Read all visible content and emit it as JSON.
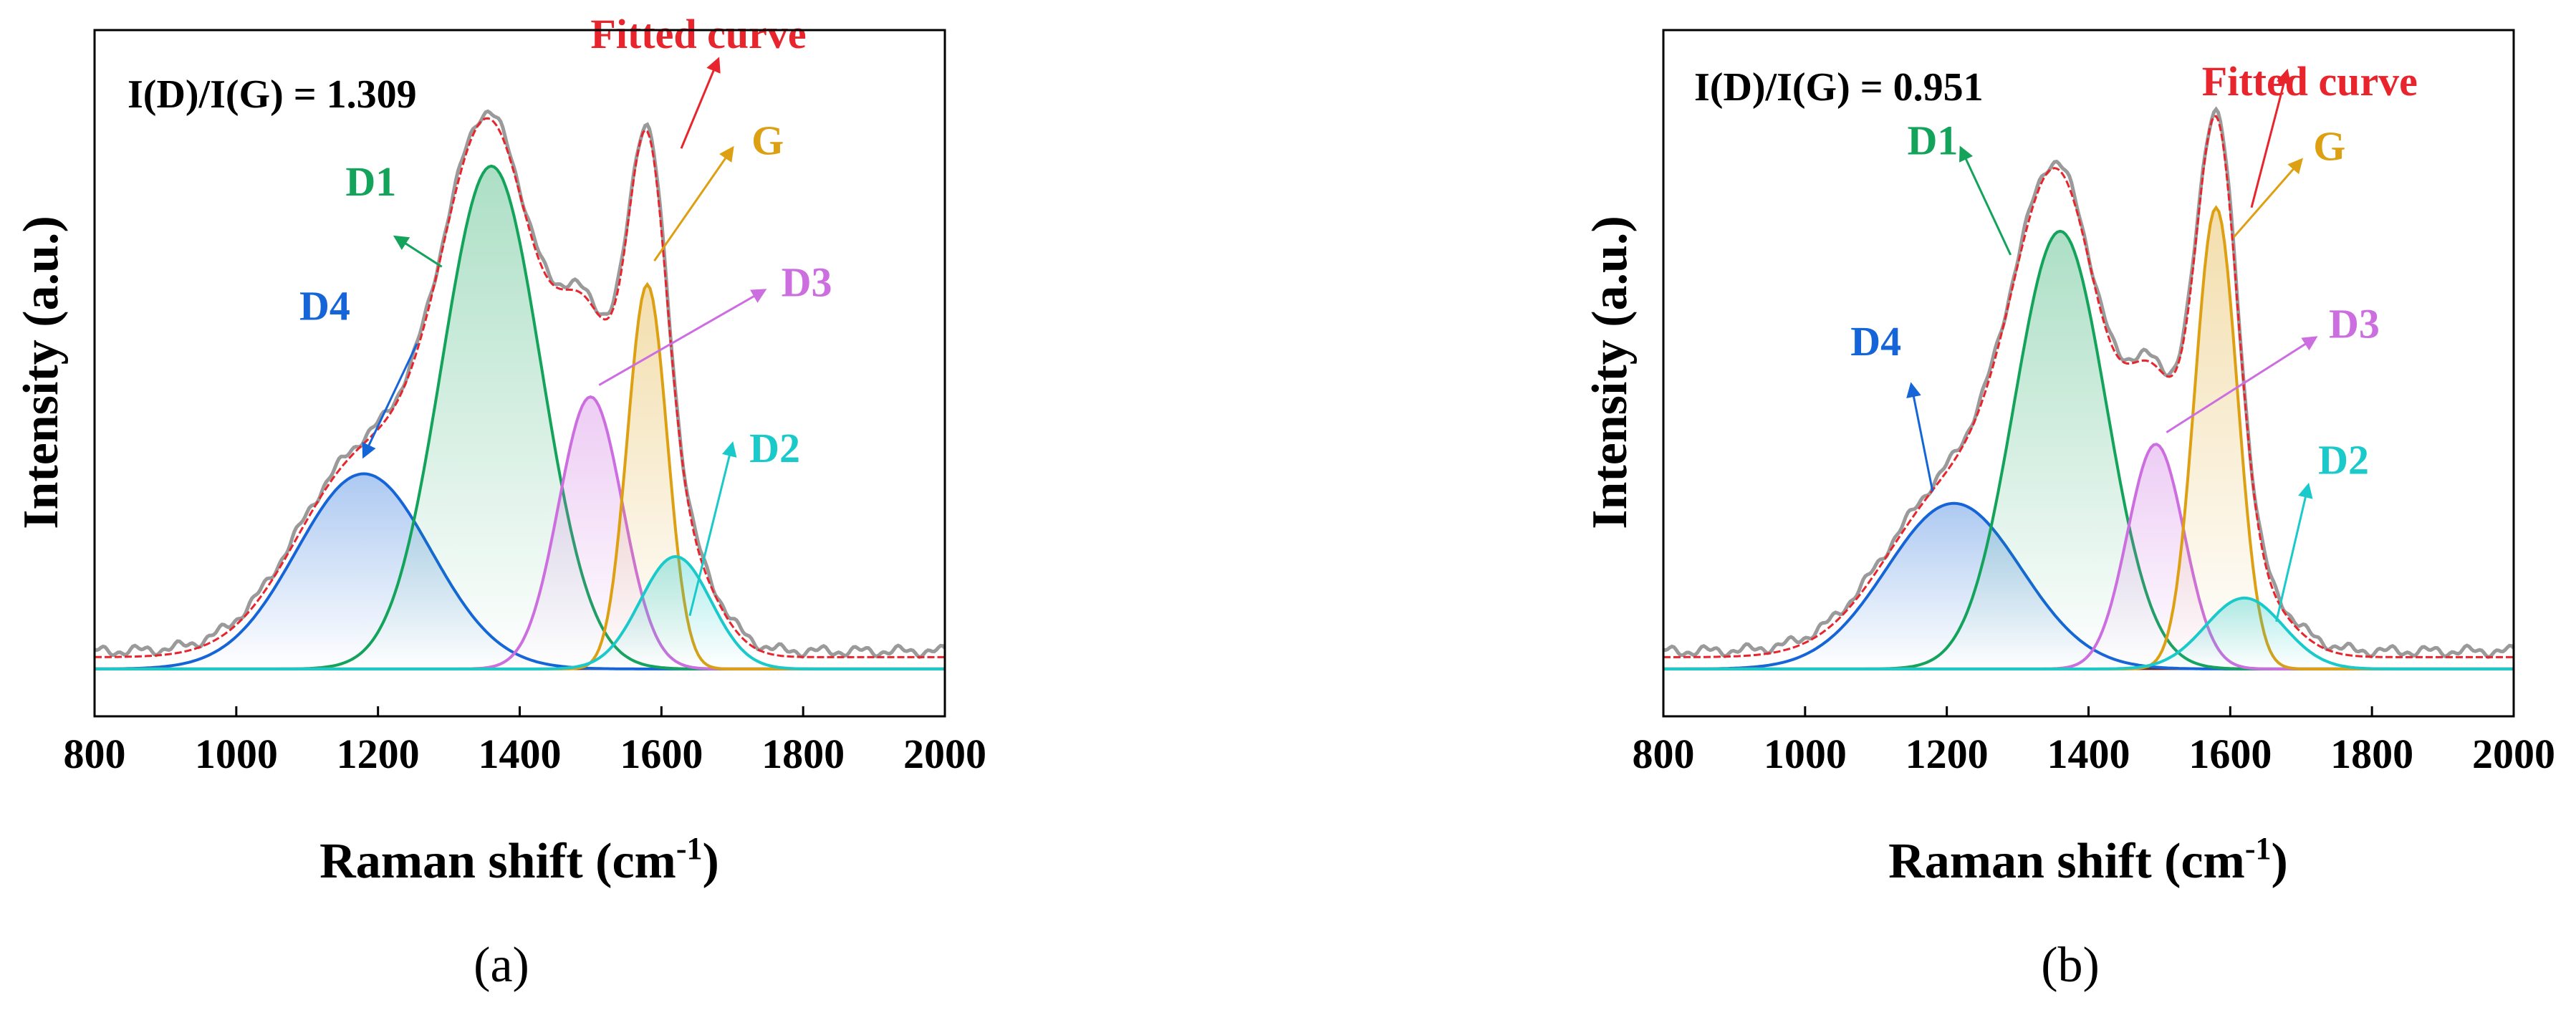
{
  "chart_data": [
    {
      "type": "line",
      "panel_label": "(a)",
      "ratio_text": "I(D)/I(G) = 1.309",
      "xlabel": "Raman shift (cm",
      "xlabel_sup": "-1",
      "xlabel_end": ")",
      "ylabel": "Intensity (a.u.)",
      "xlim": [
        800,
        2000
      ],
      "ylim": [
        -0.08,
        1.08
      ],
      "xticks": [
        "800",
        "1000",
        "1200",
        "1400",
        "1600",
        "1800",
        "2000"
      ],
      "yticks_shown": false,
      "fitted_label": "Fitted curve",
      "baseline": 0.02,
      "peaks": [
        {
          "name": "D4",
          "center": 1180,
          "sigma": 95,
          "height": 0.33,
          "color": "#1565d8"
        },
        {
          "name": "D1",
          "center": 1360,
          "sigma": 70,
          "height": 0.85,
          "color": "#13a35b"
        },
        {
          "name": "D3",
          "center": 1500,
          "sigma": 45,
          "height": 0.46,
          "color": "#cc6ee0"
        },
        {
          "name": "G",
          "center": 1580,
          "sigma": 28,
          "height": 0.65,
          "color": "#dca012"
        },
        {
          "name": "D2",
          "center": 1620,
          "sigma": 50,
          "height": 0.19,
          "color": "#1ac9c9"
        }
      ]
    },
    {
      "type": "line",
      "panel_label": "(b)",
      "ratio_text": "I(D)/I(G) = 0.951",
      "xlabel": "Raman shift (cm",
      "xlabel_sup": "-1",
      "xlabel_end": ")",
      "ylabel": "Intensity (a.u.)",
      "xlim": [
        800,
        2000
      ],
      "ylim": [
        -0.08,
        1.08
      ],
      "xticks": [
        "800",
        "1000",
        "1200",
        "1400",
        "1600",
        "1800",
        "2000"
      ],
      "yticks_shown": false,
      "fitted_label": "Fitted curve",
      "baseline": 0.02,
      "peaks": [
        {
          "name": "D4",
          "center": 1210,
          "sigma": 95,
          "height": 0.28,
          "color": "#1565d8"
        },
        {
          "name": "D1",
          "center": 1360,
          "sigma": 65,
          "height": 0.74,
          "color": "#13a35b"
        },
        {
          "name": "D3",
          "center": 1495,
          "sigma": 40,
          "height": 0.38,
          "color": "#cc6ee0"
        },
        {
          "name": "G",
          "center": 1580,
          "sigma": 30,
          "height": 0.78,
          "color": "#dca012"
        },
        {
          "name": "D2",
          "center": 1620,
          "sigma": 55,
          "height": 0.12,
          "color": "#1ac9c9"
        }
      ]
    }
  ],
  "colors": {
    "fitted": "#e8242c",
    "raw": "#9a9a9a",
    "axis": "#000000"
  }
}
